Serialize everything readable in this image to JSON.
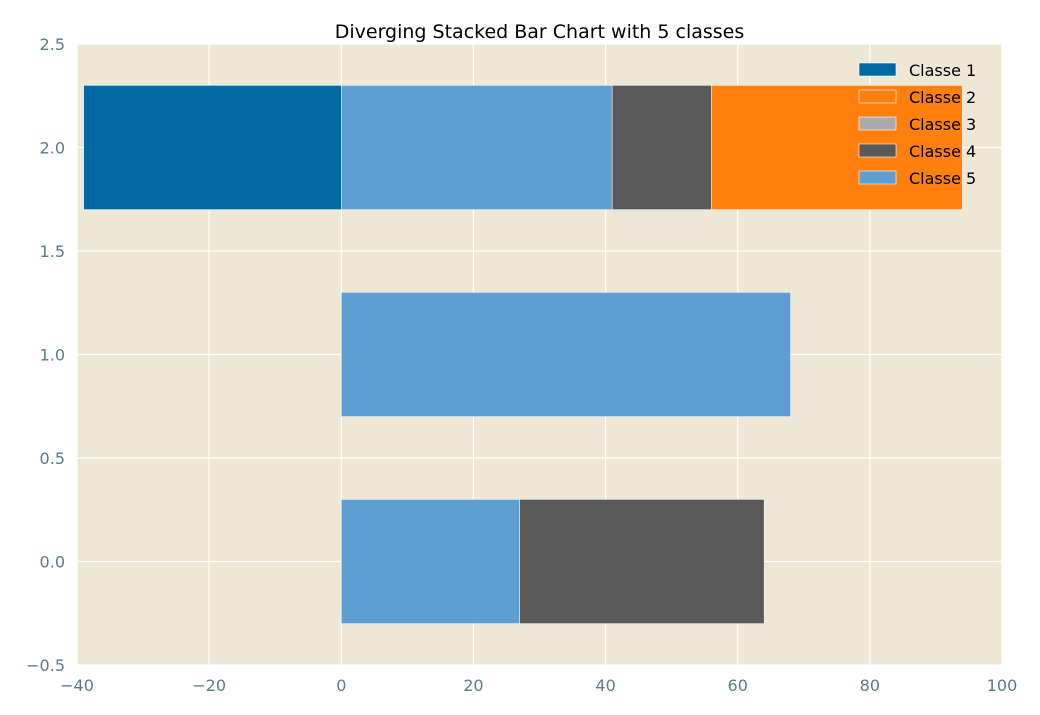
{
  "colors": {
    "plot_background": "#efe7d6",
    "grid": "#ffffff",
    "tick_text": "#5b7b8c"
  },
  "chart_data": {
    "type": "bar",
    "orientation": "horizontal",
    "stacked": true,
    "diverging": true,
    "title": "Diverging Stacked Bar Chart with 5 classes",
    "xlabel": "",
    "ylabel": "",
    "xlim": [
      -40,
      100
    ],
    "ylim": [
      -0.5,
      2.5
    ],
    "xticks": [
      -40,
      -20,
      0,
      20,
      40,
      60,
      80,
      100
    ],
    "xtick_labels": [
      "−40",
      "−20",
      "0",
      "20",
      "40",
      "60",
      "80",
      "100"
    ],
    "yticks": [
      -0.5,
      0.0,
      0.5,
      1.0,
      1.5,
      2.0,
      2.5
    ],
    "ytick_labels": [
      "−0.5",
      "0.0",
      "0.5",
      "1.0",
      "1.5",
      "2.0",
      "2.5"
    ],
    "grid": true,
    "legend_position": "top-right",
    "bar_height": 0.6,
    "categories": [
      0,
      1,
      2
    ],
    "series": [
      {
        "name": "Classe 1",
        "color": "#0069a3"
      },
      {
        "name": "Classe 2",
        "color": "#ff800e"
      },
      {
        "name": "Classe 3",
        "color": "#ababab"
      },
      {
        "name": "Classe 4",
        "color": "#595959"
      },
      {
        "name": "Classe 5",
        "color": "#5f9ed1"
      }
    ],
    "segments": [
      {
        "y": 0,
        "start": 0,
        "end": 27,
        "color": "#5f9ed1"
      },
      {
        "y": 0,
        "start": 27,
        "end": 64,
        "color": "#595959"
      },
      {
        "y": 1,
        "start": 0,
        "end": 68,
        "color": "#5f9ed1"
      },
      {
        "y": 2,
        "start": -39,
        "end": 0,
        "color": "#0069a3"
      },
      {
        "y": 2,
        "start": 0,
        "end": 41,
        "color": "#5f9ed1"
      },
      {
        "y": 2,
        "start": 41,
        "end": 56,
        "color": "#595959"
      },
      {
        "y": 2,
        "start": 56,
        "end": 94,
        "color": "#ff800e"
      }
    ]
  }
}
